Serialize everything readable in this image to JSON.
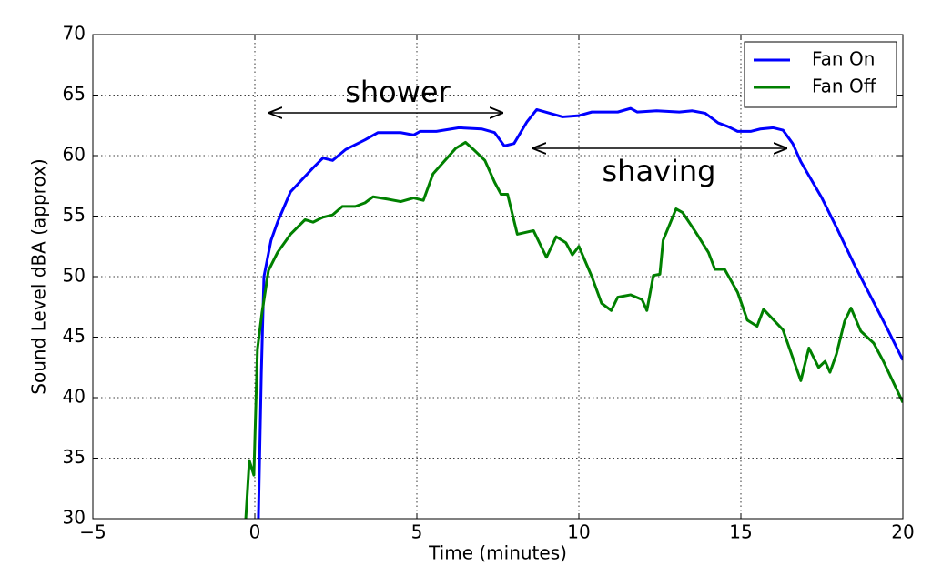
{
  "chart_data": {
    "type": "line",
    "xlabel": "Time (minutes)",
    "ylabel": "Sound Level dBA (approx)",
    "annotations": [
      "shower",
      "shaving"
    ],
    "xlim": [
      -5,
      20
    ],
    "ylim": [
      30,
      70
    ],
    "xticks": [
      {
        "value": -5,
        "label": "−5"
      },
      0,
      5,
      10,
      15,
      20
    ],
    "yticks": [
      30,
      35,
      40,
      45,
      50,
      55,
      60,
      65,
      70
    ],
    "grid": true,
    "legend": "upper right",
    "series": [
      {
        "name": "Fan On",
        "color": "#0000ff",
        "x": [
          0.11,
          0.2,
          0.28,
          0.5,
          0.7,
          1.1,
          1.8,
          2.1,
          2.4,
          2.8,
          3.4,
          3.8,
          4.5,
          4.9,
          5.1,
          5.6,
          6.3,
          7.0,
          7.4,
          7.7,
          8.0,
          8.4,
          8.7,
          9.1,
          9.5,
          10.0,
          10.4,
          11.2,
          11.6,
          11.8,
          12.4,
          13.1,
          13.5,
          13.9,
          14.3,
          14.6,
          14.9,
          15.3,
          15.6,
          16.0,
          16.3,
          16.6,
          16.85,
          17.5,
          18.0,
          18.5,
          19.0,
          19.5,
          20.0
        ],
        "values": [
          30,
          42,
          50,
          53,
          54.5,
          57,
          59,
          59.8,
          59.6,
          60.5,
          61.3,
          61.9,
          61.9,
          61.7,
          62,
          62,
          62.3,
          62.2,
          61.9,
          60.8,
          61,
          62.8,
          63.8,
          63.5,
          63.2,
          63.3,
          63.6,
          63.6,
          63.9,
          63.6,
          63.7,
          63.6,
          63.7,
          63.5,
          62.7,
          62.4,
          62,
          62,
          62.2,
          62.3,
          62.1,
          61,
          59.5,
          56.5,
          53.8,
          51,
          48.4,
          45.8,
          43.1
        ]
      },
      {
        "name": "Fan Off",
        "color": "#008000",
        "x": [
          -0.28,
          -0.17,
          -0.03,
          0.08,
          0.22,
          0.42,
          0.7,
          1.1,
          1.55,
          1.8,
          2.1,
          2.4,
          2.7,
          3.1,
          3.4,
          3.65,
          4.1,
          4.5,
          4.9,
          5.2,
          5.5,
          5.9,
          6.2,
          6.5,
          6.75,
          7.1,
          7.4,
          7.6,
          7.8,
          8.1,
          8.6,
          9.0,
          9.3,
          9.6,
          9.8,
          10.0,
          10.4,
          10.7,
          11.0,
          11.2,
          11.6,
          11.95,
          12.1,
          12.3,
          12.5,
          12.6,
          13.0,
          13.2,
          13.6,
          14.0,
          14.2,
          14.5,
          14.9,
          15.2,
          15.5,
          15.7,
          16.3,
          16.85,
          17.1,
          17.4,
          17.6,
          17.75,
          17.95,
          18.2,
          18.4,
          18.7,
          19.1,
          19.4,
          20.0
        ],
        "values": [
          30,
          34.8,
          33.6,
          44,
          47,
          50.5,
          52,
          53.5,
          54.7,
          54.5,
          54.9,
          55.1,
          55.8,
          55.8,
          56.1,
          56.6,
          56.4,
          56.2,
          56.5,
          56.3,
          58.5,
          59.7,
          60.6,
          61.1,
          60.5,
          59.6,
          57.8,
          56.8,
          56.8,
          53.5,
          53.8,
          51.6,
          53.3,
          52.8,
          51.8,
          52.5,
          50,
          47.8,
          47.2,
          48.3,
          48.5,
          48.1,
          47.2,
          50.1,
          50.2,
          53,
          55.6,
          55.3,
          53.7,
          52,
          50.6,
          50.6,
          48.7,
          46.4,
          45.9,
          47.3,
          45.6,
          41.4,
          44.1,
          42.5,
          43,
          42.1,
          43.6,
          46.3,
          47.4,
          45.5,
          44.5,
          43,
          39.6
        ]
      }
    ]
  }
}
